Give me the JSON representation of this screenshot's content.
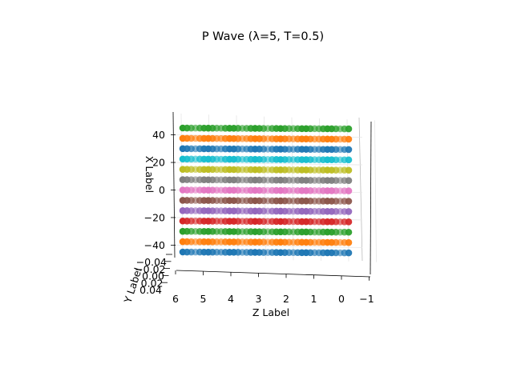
{
  "chart_data": {
    "type": "scatter",
    "projection": "3d",
    "title": "P Wave (λ=5, T=0.5)",
    "xlabel": "X Label",
    "ylabel": "Y Label",
    "zlabel": "Z Label",
    "x_ticks": [
      "40",
      "20",
      "0",
      "−20",
      "−40"
    ],
    "y_ticks": [
      "−0.04",
      "−0.02",
      "0.00",
      "0.02",
      "0.04"
    ],
    "z_ticks": [
      "6",
      "5",
      "4",
      "3",
      "2",
      "1",
      "0",
      "−1"
    ],
    "z_range": [
      0,
      6
    ],
    "x_levels": [
      45,
      37.5,
      30,
      22.5,
      15,
      7.5,
      0,
      -7.5,
      -15,
      -22.5,
      -30,
      -37.5,
      -45
    ],
    "grid": true,
    "colors": [
      "#2ca02c",
      "#ff7f0e",
      "#1f77b4",
      "#17becf",
      "#bcbd22",
      "#7f7f7f",
      "#e377c2",
      "#8c564b",
      "#9467bd",
      "#d62728",
      "#2ca02c",
      "#ff7f0e",
      "#1f77b4"
    ],
    "points_per_series": 40
  }
}
